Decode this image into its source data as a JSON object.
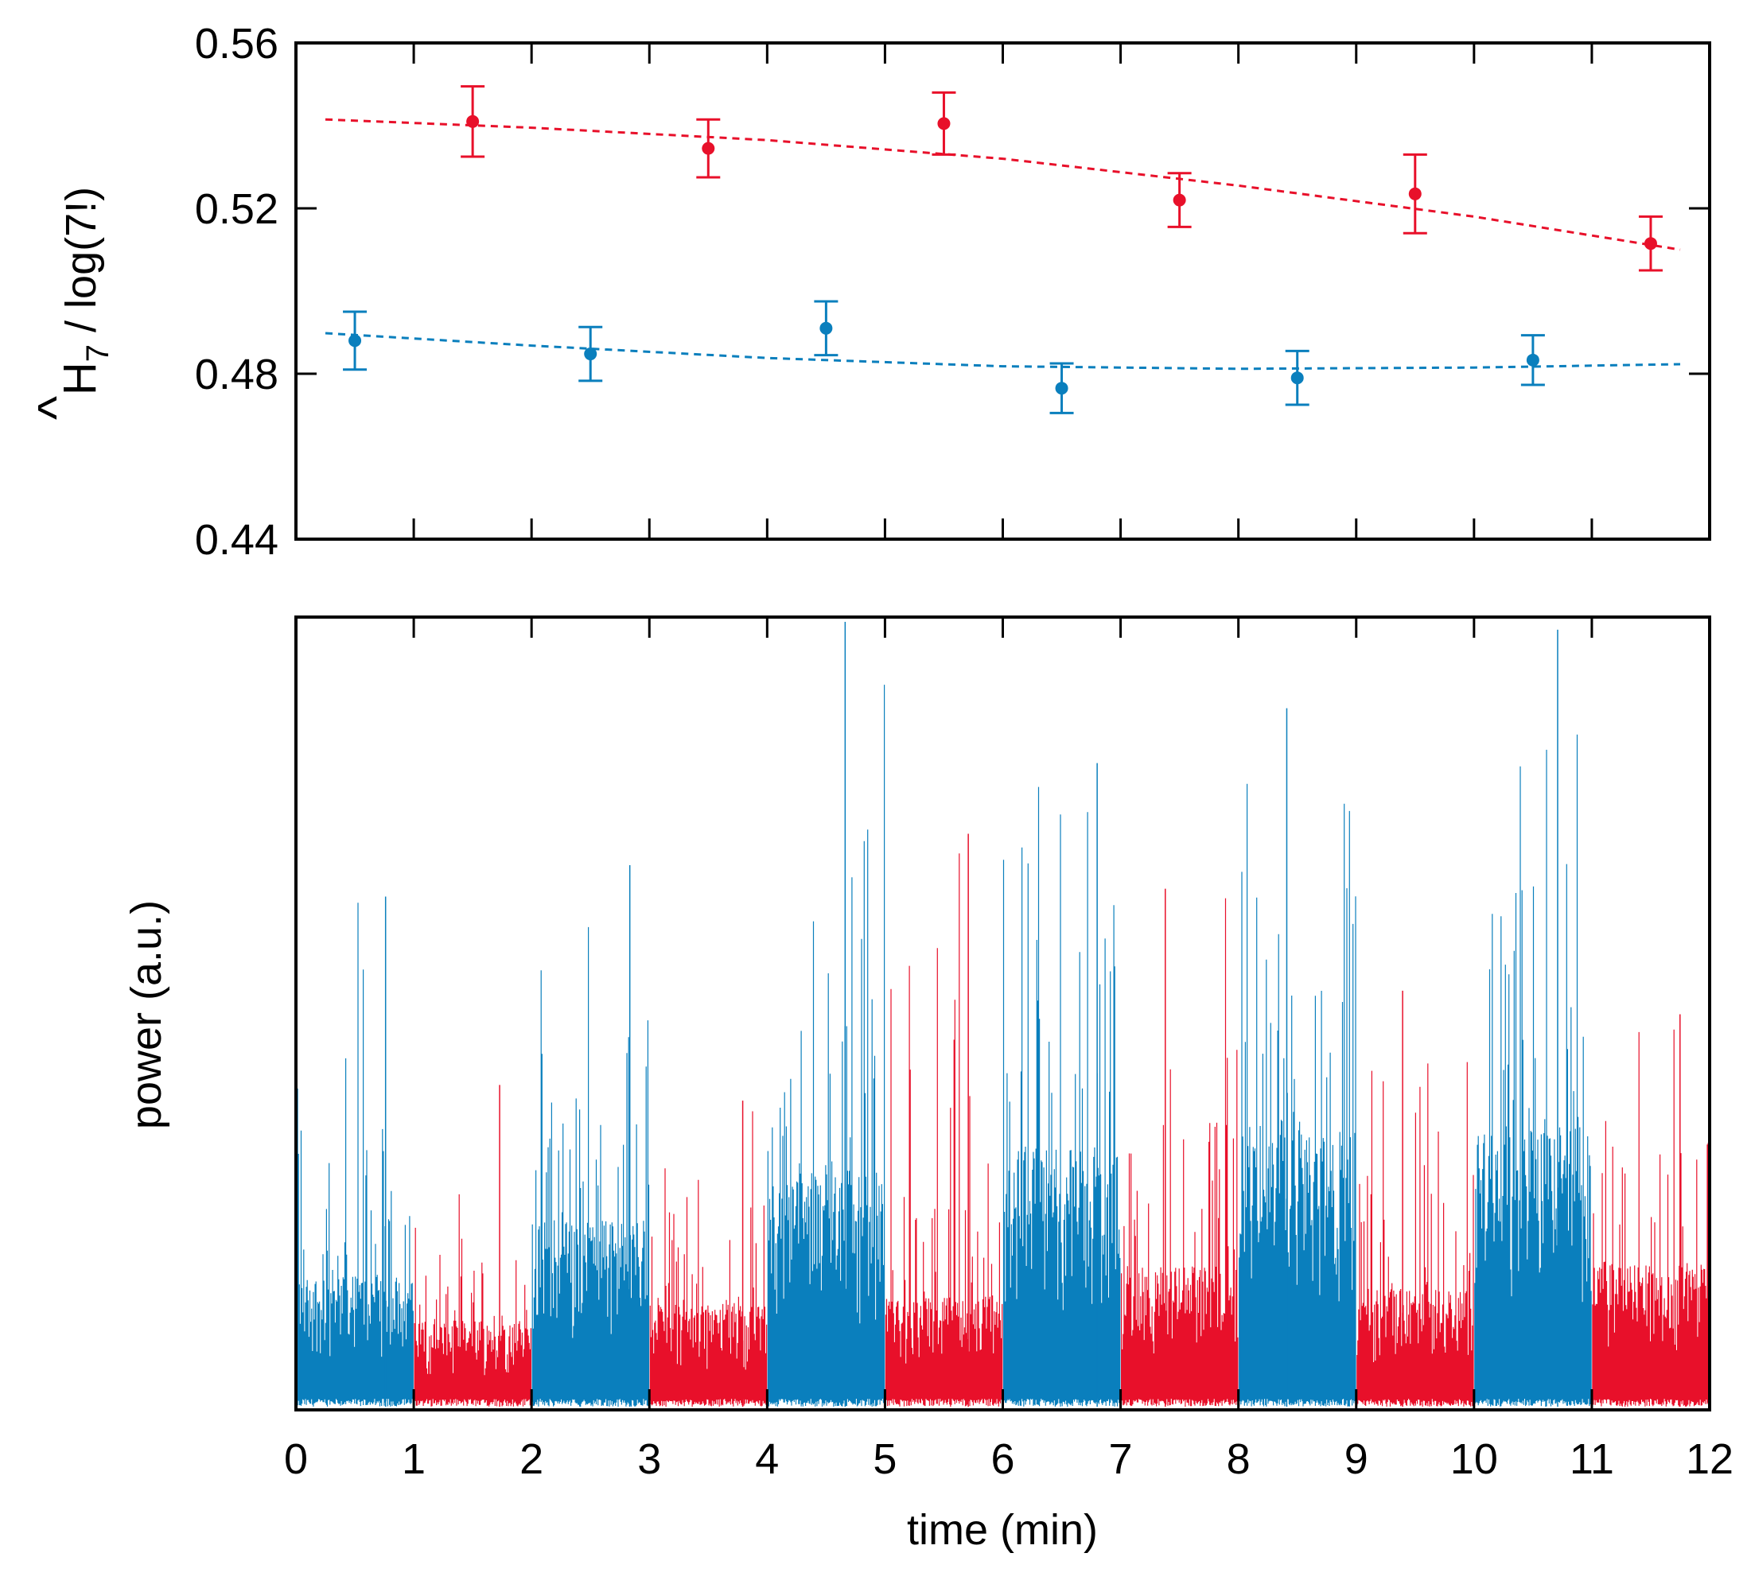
{
  "chart_data": [
    {
      "type": "scatter",
      "ylabel_hat_symbol": "^",
      "ylabel_main": "H",
      "ylabel_subscript": "7",
      "ylabel_suffix": " / log(7!)",
      "xlim": [
        0,
        12
      ],
      "ylim": [
        0.44,
        0.56
      ],
      "yticks": [
        "0.44",
        "0.48",
        "0.52",
        "0.56"
      ],
      "ytick_values": [
        0.44,
        0.48,
        0.52,
        0.56
      ],
      "xtick_values": [
        0,
        1,
        2,
        3,
        4,
        5,
        6,
        7,
        8,
        9,
        10,
        11,
        12
      ],
      "grid": false,
      "series": [
        {
          "color": "#e8102a",
          "points": [
            {
              "x": 1.5,
              "y": 0.541,
              "err": 0.0085
            },
            {
              "x": 3.5,
              "y": 0.5345,
              "err": 0.007
            },
            {
              "x": 5.5,
              "y": 0.5405,
              "err": 0.0075
            },
            {
              "x": 7.5,
              "y": 0.522,
              "err": 0.0065
            },
            {
              "x": 9.5,
              "y": 0.5235,
              "err": 0.0095
            },
            {
              "x": 11.5,
              "y": 0.5115,
              "err": 0.0065
            }
          ],
          "trend": [
            [
              0.25,
              0.5415
            ],
            [
              2,
              0.5395
            ],
            [
              4,
              0.5365
            ],
            [
              6,
              0.532
            ],
            [
              8,
              0.5255
            ],
            [
              10,
              0.518
            ],
            [
              11.75,
              0.51
            ]
          ]
        },
        {
          "color": "#0a7fbd",
          "points": [
            {
              "x": 0.5,
              "y": 0.488,
              "err": 0.007
            },
            {
              "x": 2.5,
              "y": 0.4848,
              "err": 0.0065
            },
            {
              "x": 4.5,
              "y": 0.491,
              "err": 0.0065
            },
            {
              "x": 6.5,
              "y": 0.4765,
              "err": 0.006
            },
            {
              "x": 8.5,
              "y": 0.479,
              "err": 0.0065
            },
            {
              "x": 10.5,
              "y": 0.4833,
              "err": 0.006
            }
          ],
          "trend": [
            [
              0.25,
              0.4898
            ],
            [
              2,
              0.4868
            ],
            [
              4,
              0.4838
            ],
            [
              6,
              0.4818
            ],
            [
              8,
              0.4812
            ],
            [
              10,
              0.4815
            ],
            [
              11.75,
              0.4823
            ]
          ]
        }
      ]
    },
    {
      "type": "bar",
      "xlabel": "time (min)",
      "ylabel": "power (a.u.)",
      "xlim": [
        0,
        12
      ],
      "ylim": [
        0,
        1
      ],
      "xticks": [
        "0",
        "1",
        "2",
        "3",
        "4",
        "5",
        "6",
        "7",
        "8",
        "9",
        "10",
        "11",
        "12"
      ],
      "grid": false,
      "segments": [
        {
          "start": 0,
          "end": 1,
          "color": "#0a7fbd",
          "dense_level": 0.17,
          "peak_level": 0.65
        },
        {
          "start": 1,
          "end": 2,
          "color": "#e8102a",
          "dense_level": 0.11,
          "peak_level": 0.41
        },
        {
          "start": 2,
          "end": 3,
          "color": "#0a7fbd",
          "dense_level": 0.24,
          "peak_level": 0.69
        },
        {
          "start": 3,
          "end": 4,
          "color": "#e8102a",
          "dense_level": 0.13,
          "peak_level": 0.39
        },
        {
          "start": 4,
          "end": 5,
          "color": "#0a7fbd",
          "dense_level": 0.3,
          "peak_level": 1.0
        },
        {
          "start": 5,
          "end": 6,
          "color": "#e8102a",
          "dense_level": 0.14,
          "peak_level": 0.73
        },
        {
          "start": 6,
          "end": 7,
          "color": "#0a7fbd",
          "dense_level": 0.33,
          "peak_level": 0.82
        },
        {
          "start": 7,
          "end": 8,
          "color": "#e8102a",
          "dense_level": 0.18,
          "peak_level": 0.66
        },
        {
          "start": 8,
          "end": 9,
          "color": "#0a7fbd",
          "dense_level": 0.35,
          "peak_level": 0.89
        },
        {
          "start": 9,
          "end": 10,
          "color": "#e8102a",
          "dense_level": 0.15,
          "peak_level": 0.53
        },
        {
          "start": 10,
          "end": 11,
          "color": "#0a7fbd",
          "dense_level": 0.36,
          "peak_level": 0.99
        },
        {
          "start": 11,
          "end": 12,
          "color": "#e8102a",
          "dense_level": 0.18,
          "peak_level": 0.5
        }
      ]
    }
  ]
}
